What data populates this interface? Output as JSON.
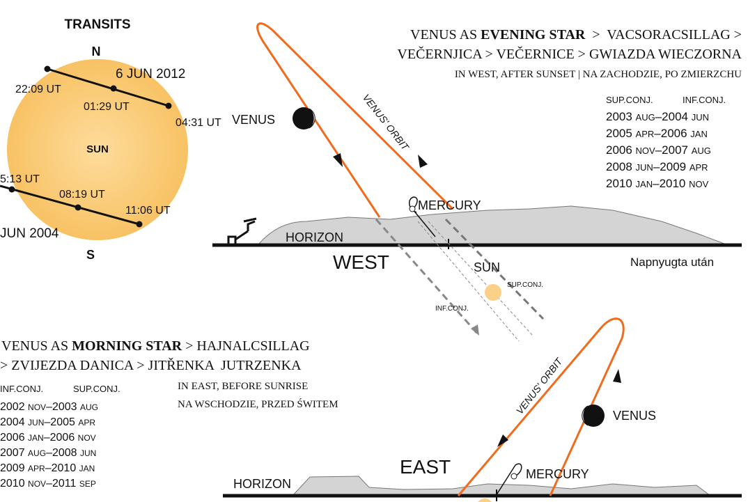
{
  "transits": {
    "title": "TRANSITS",
    "north": "N",
    "south": "S",
    "sun": "SUN",
    "transit_2012": {
      "date": "6 JUN 2012",
      "times": [
        "22:09 UT",
        "01:29 UT",
        "04:31 UT"
      ]
    },
    "transit_2004": {
      "date": "JUN 2004",
      "times": [
        "5:13 UT",
        "08:19 UT",
        "11:06 UT"
      ]
    }
  },
  "evening": {
    "heading": {
      "line1": [
        "VENUS AS ",
        "EVENING STAR",
        "  >  VACSORACSILLAG >"
      ],
      "line2": "VEČERNJICA > VEČERNICE > GWIAZDA WIECZORNA",
      "line3": "IN WEST, AFTER SUNSET | NA ZACHODZIE, PO ZMIERZCHU"
    },
    "table": {
      "headers": [
        "SUP.CONJ.",
        "INF.CONJ."
      ],
      "rows": [
        [
          "2003 ",
          "AUG",
          "–2004 ",
          "JUN"
        ],
        [
          "2005 ",
          "APR",
          "–2006 ",
          "JAN"
        ],
        [
          "2006 ",
          "NOV",
          "–2007 ",
          "AUG"
        ],
        [
          "2008 ",
          "JUN",
          "–2009 ",
          "APR"
        ],
        [
          "2010 ",
          "JAN",
          "–2010 ",
          "NOV"
        ]
      ]
    },
    "labels": {
      "venus": "VENUS",
      "orbit": "VENUS' ORBIT",
      "mercury": "MERCURY",
      "horizon": "HORIZON",
      "direction": "WEST",
      "sun": "SUN",
      "sup_conj": "SUP.CONJ.",
      "inf_conj": "INF.CONJ.",
      "note": "Napnyugta után"
    }
  },
  "morning": {
    "heading": {
      "line1": [
        "VENUS AS ",
        "MORNING STAR",
        " > HAJNALCSILLAG"
      ],
      "line2": "> ZVIJEZDA DANICA > JITŘENKA  JUTRZENKA",
      "line3": "IN EAST, BEFORE SUNRISE",
      "line4": "NA WSCHODZIE, PRZED ŚWITEM"
    },
    "table": {
      "headers": [
        "INF.CONJ.",
        "SUP.CONJ."
      ],
      "rows": [
        [
          "2002 ",
          "NOV",
          "–2003 ",
          "AUG"
        ],
        [
          "2004 ",
          "JUN",
          "–2005 ",
          "APR"
        ],
        [
          "2006 ",
          "JAN",
          "–2006 ",
          "NOV"
        ],
        [
          "2007 ",
          "AUG",
          "–2008 ",
          "JUN"
        ],
        [
          "2009 ",
          "APR",
          "–2010 ",
          "JAN"
        ],
        [
          "2010 ",
          "NOV",
          "–2011 ",
          "SEP"
        ]
      ]
    },
    "labels": {
      "venus": "VENUS",
      "orbit": "VENUS' ORBIT",
      "mercury": "MERCURY",
      "horizon": "HORIZON",
      "direction": "EAST"
    }
  }
}
